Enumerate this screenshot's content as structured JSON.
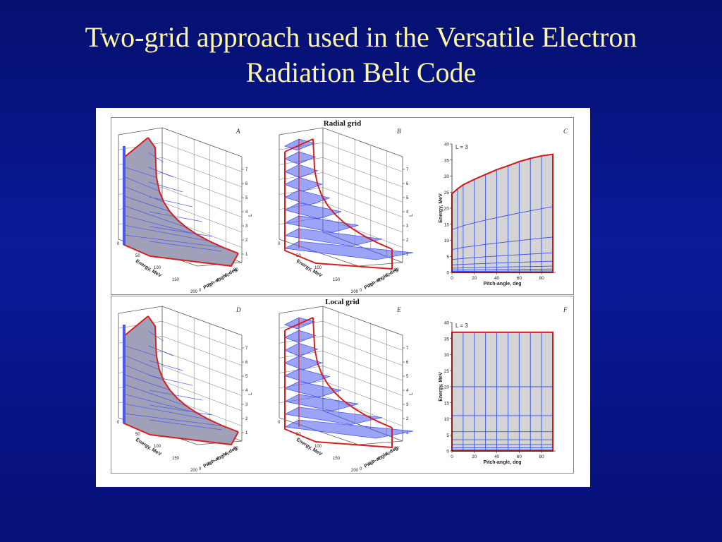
{
  "title_line1": "Two-grid approach used in the Versatile Electron",
  "title_line2": "Radiation Belt Code",
  "rows": [
    {
      "title": "Radial grid",
      "panels": [
        "A",
        "B",
        "C"
      ]
    },
    {
      "title": "Local grid",
      "panels": [
        "D",
        "E",
        "F"
      ]
    }
  ],
  "axes3d": {
    "energy_label": "Energy, MeV",
    "pitch_label": "Pitch-angle, deg",
    "l_label": "L",
    "energy_ticks": [
      "0",
      "50",
      "100",
      "150",
      "200"
    ],
    "pitch_ticks": [
      "0",
      "20",
      "40",
      "60",
      "80"
    ],
    "l_ticks": [
      "1",
      "2",
      "3",
      "4",
      "5",
      "6",
      "7"
    ]
  },
  "chart_data": [
    {
      "type": "line",
      "panel": "C",
      "annotation": "L = 3",
      "xlabel": "Pitch-angle, deg",
      "ylabel": "Energy, MeV",
      "xlim": [
        0,
        90
      ],
      "ylim": [
        0,
        40
      ],
      "xticks": [
        0,
        20,
        40,
        60,
        80
      ],
      "yticks": [
        0,
        5,
        10,
        15,
        20,
        25,
        30,
        35,
        40
      ],
      "grid_x": [
        0,
        5,
        10,
        20,
        30,
        40,
        50,
        60,
        70,
        80,
        90
      ],
      "boundary": {
        "x": [
          0,
          5,
          10,
          20,
          30,
          40,
          50,
          60,
          70,
          80,
          90
        ],
        "y": [
          24.5,
          26,
          27.3,
          29,
          30.5,
          32,
          33.2,
          34.5,
          35.5,
          36.3,
          36.8
        ]
      },
      "energy_levels": [
        {
          "y_start": 13.3,
          "y_end": 20.5
        },
        {
          "y_start": 7.1,
          "y_end": 11.0
        },
        {
          "y_start": 4.0,
          "y_end": 6.1
        },
        {
          "y_start": 2.3,
          "y_end": 3.5
        },
        {
          "y_start": 1.3,
          "y_end": 1.95
        },
        {
          "y_start": 0.7,
          "y_end": 1.05
        },
        {
          "y_start": 0.3,
          "y_end": 0.45
        }
      ]
    },
    {
      "type": "line",
      "panel": "F",
      "annotation": "L = 3",
      "xlabel": "Pitch-angle, deg",
      "ylabel": "Energy, MeV",
      "xlim": [
        0,
        90
      ],
      "ylim": [
        0,
        40
      ],
      "xticks": [
        0,
        20,
        40,
        60,
        80
      ],
      "yticks": [
        0,
        5,
        10,
        15,
        20,
        25,
        30,
        35,
        40
      ],
      "grid_x": [
        0,
        10,
        20,
        30,
        40,
        50,
        60,
        70,
        80,
        90
      ],
      "boundary": {
        "x": [
          0,
          90
        ],
        "y": [
          37,
          37
        ]
      },
      "energy_levels": [
        {
          "y_start": 20,
          "y_end": 20
        },
        {
          "y_start": 11,
          "y_end": 11
        },
        {
          "y_start": 6,
          "y_end": 6
        },
        {
          "y_start": 3.5,
          "y_end": 3.5
        },
        {
          "y_start": 2,
          "y_end": 2
        },
        {
          "y_start": 1,
          "y_end": 1
        },
        {
          "y_start": 0.4,
          "y_end": 0.4
        }
      ]
    }
  ]
}
